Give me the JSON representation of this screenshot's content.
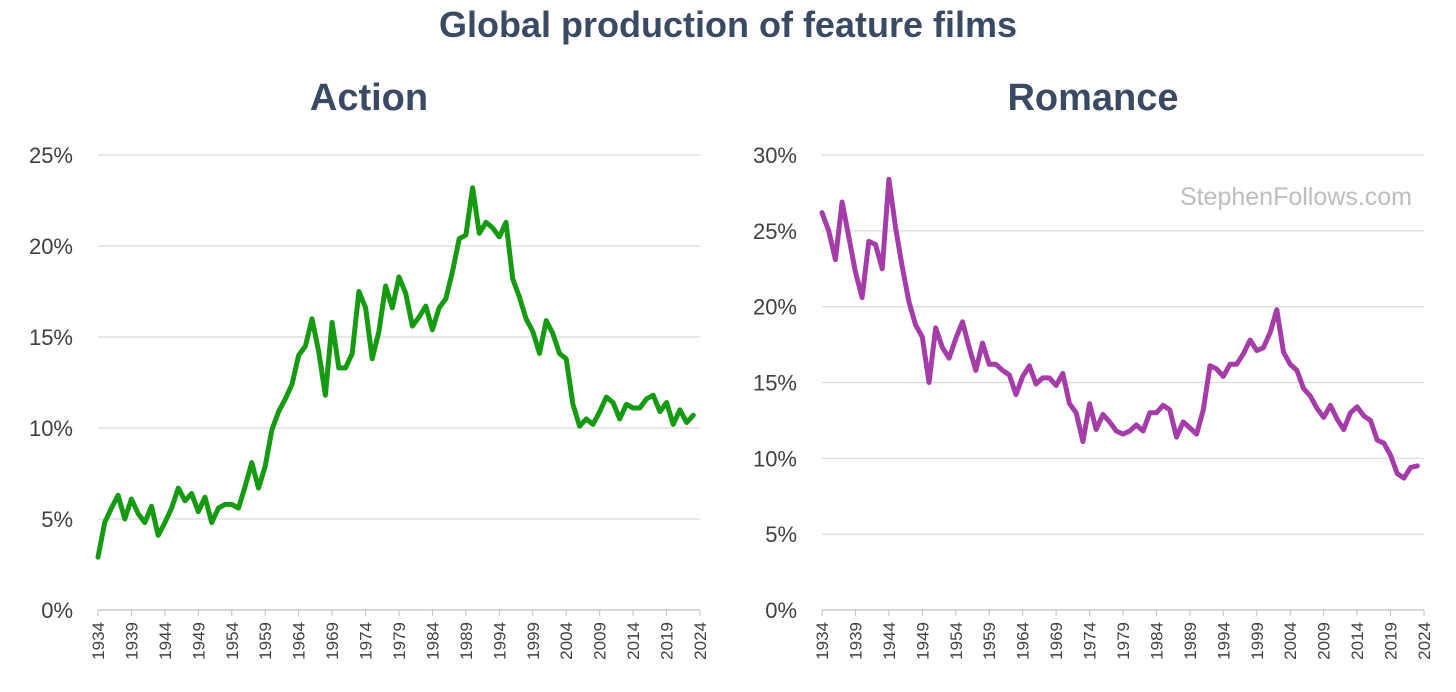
{
  "title": "Global production of feature films",
  "watermark": "StephenFollows.com",
  "x_tick_labels": [
    "1934",
    "1939",
    "1944",
    "1949",
    "1954",
    "1959",
    "1964",
    "1969",
    "1974",
    "1979",
    "1984",
    "1989",
    "1994",
    "1999",
    "2004",
    "2009",
    "2014",
    "2019",
    "2024"
  ],
  "chart_data": [
    {
      "type": "line",
      "title": "Action",
      "color": "#159a12",
      "xlabel": "",
      "ylabel": "",
      "xlim": [
        1934,
        2024
      ],
      "ylim": [
        0,
        25
      ],
      "y_ticks": [
        "0%",
        "5%",
        "10%",
        "15%",
        "20%",
        "25%"
      ],
      "grid": true,
      "x": [
        1934,
        1935,
        1936,
        1937,
        1938,
        1939,
        1940,
        1941,
        1942,
        1943,
        1944,
        1945,
        1946,
        1947,
        1948,
        1949,
        1950,
        1951,
        1952,
        1953,
        1954,
        1955,
        1956,
        1957,
        1958,
        1959,
        1960,
        1961,
        1962,
        1963,
        1964,
        1965,
        1966,
        1967,
        1968,
        1969,
        1970,
        1971,
        1972,
        1973,
        1974,
        1975,
        1976,
        1977,
        1978,
        1979,
        1980,
        1981,
        1982,
        1983,
        1984,
        1985,
        1986,
        1987,
        1988,
        1989,
        1990,
        1991,
        1992,
        1993,
        1994,
        1995,
        1996,
        1997,
        1998,
        1999,
        2000,
        2001,
        2002,
        2003,
        2004,
        2005,
        2006,
        2007,
        2008,
        2009,
        2010,
        2011,
        2012,
        2013,
        2014,
        2015,
        2016,
        2017,
        2018,
        2019,
        2020,
        2021,
        2022,
        2023
      ],
      "values": [
        2.9,
        4.8,
        5.6,
        6.3,
        5.0,
        6.1,
        5.3,
        4.8,
        5.7,
        4.1,
        4.8,
        5.6,
        6.7,
        6.0,
        6.4,
        5.4,
        6.2,
        4.8,
        5.6,
        5.8,
        5.8,
        5.6,
        6.8,
        8.1,
        6.7,
        7.9,
        9.9,
        10.9,
        11.6,
        12.4,
        14.0,
        14.5,
        16.0,
        14.2,
        11.8,
        15.8,
        13.3,
        13.3,
        14.1,
        17.5,
        16.6,
        13.8,
        15.3,
        17.8,
        16.6,
        18.3,
        17.4,
        15.6,
        16.1,
        16.7,
        15.4,
        16.6,
        17.1,
        18.6,
        20.4,
        20.6,
        23.2,
        20.7,
        21.3,
        21.0,
        20.5,
        21.3,
        18.2,
        17.2,
        16.0,
        15.3,
        14.1,
        15.9,
        15.2,
        14.1,
        13.8,
        11.3,
        10.1,
        10.5,
        10.2,
        10.9,
        11.7,
        11.4,
        10.5,
        11.3,
        11.1,
        11.1,
        11.6,
        11.8,
        10.9,
        11.4,
        10.2,
        11.0,
        10.3,
        10.7
      ]
    },
    {
      "type": "line",
      "title": "Romance",
      "color": "#a43da8",
      "xlabel": "",
      "ylabel": "",
      "xlim": [
        1934,
        2024
      ],
      "ylim": [
        0,
        30
      ],
      "y_ticks": [
        "0%",
        "5%",
        "10%",
        "15%",
        "20%",
        "25%",
        "30%"
      ],
      "grid": true,
      "x": [
        1934,
        1935,
        1936,
        1937,
        1938,
        1939,
        1940,
        1941,
        1942,
        1943,
        1944,
        1945,
        1946,
        1947,
        1948,
        1949,
        1950,
        1951,
        1952,
        1953,
        1954,
        1955,
        1956,
        1957,
        1958,
        1959,
        1960,
        1961,
        1962,
        1963,
        1964,
        1965,
        1966,
        1967,
        1968,
        1969,
        1970,
        1971,
        1972,
        1973,
        1974,
        1975,
        1976,
        1977,
        1978,
        1979,
        1980,
        1981,
        1982,
        1983,
        1984,
        1985,
        1986,
        1987,
        1988,
        1989,
        1990,
        1991,
        1992,
        1993,
        1994,
        1995,
        1996,
        1997,
        1998,
        1999,
        2000,
        2001,
        2002,
        2003,
        2004,
        2005,
        2006,
        2007,
        2008,
        2009,
        2010,
        2011,
        2012,
        2013,
        2014,
        2015,
        2016,
        2017,
        2018,
        2019,
        2020,
        2021,
        2022,
        2023
      ],
      "values": [
        26.2,
        25.0,
        23.1,
        26.9,
        24.6,
        22.3,
        20.6,
        24.3,
        24.1,
        22.5,
        28.4,
        25.2,
        22.6,
        20.3,
        18.8,
        18.0,
        15.0,
        18.6,
        17.3,
        16.6,
        17.9,
        19.0,
        17.3,
        15.8,
        17.6,
        16.2,
        16.2,
        15.8,
        15.5,
        14.2,
        15.4,
        16.1,
        14.9,
        15.3,
        15.3,
        14.8,
        15.6,
        13.6,
        13.0,
        11.1,
        13.6,
        11.9,
        12.9,
        12.4,
        11.8,
        11.6,
        11.8,
        12.2,
        11.8,
        13.0,
        13.0,
        13.5,
        13.2,
        11.4,
        12.4,
        12.0,
        11.6,
        13.2,
        16.1,
        15.9,
        15.4,
        16.2,
        16.2,
        16.9,
        17.8,
        17.1,
        17.3,
        18.3,
        19.8,
        17.0,
        16.2,
        15.8,
        14.6,
        14.1,
        13.3,
        12.7,
        13.5,
        12.6,
        11.9,
        13.0,
        13.4,
        12.8,
        12.5,
        11.2,
        11.0,
        10.2,
        9.0,
        8.7,
        9.4,
        9.5
      ]
    }
  ]
}
